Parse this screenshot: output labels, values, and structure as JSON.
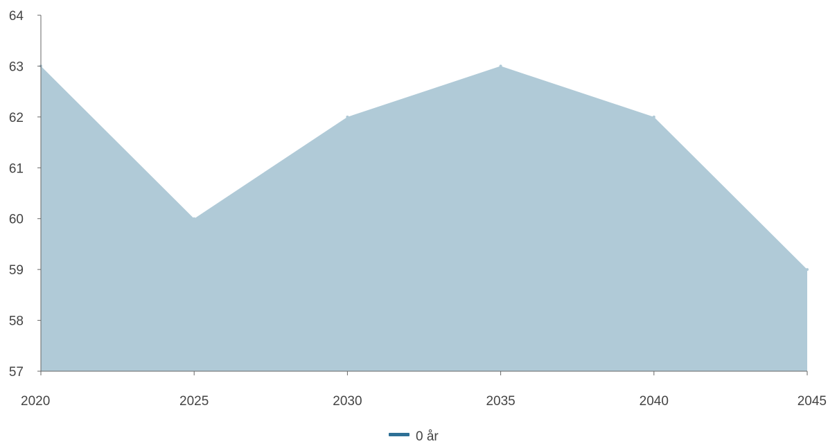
{
  "chart_data": {
    "type": "area",
    "x": [
      2020,
      2025,
      2030,
      2035,
      2040,
      2045
    ],
    "series": [
      {
        "name": "0 år",
        "values": [
          63,
          60,
          62,
          63,
          62,
          59
        ]
      }
    ],
    "ylim": [
      57,
      64
    ],
    "yticks": [
      57,
      58,
      59,
      60,
      61,
      62,
      63,
      64
    ],
    "xticks": [
      2020,
      2025,
      2030,
      2035,
      2040,
      2045
    ],
    "grid": false,
    "legend_position": "bottom-center",
    "colors": {
      "area_fill": "#b0cad7",
      "legend_swatch": "#2e7096",
      "axis": "#666666",
      "text": "#444444"
    }
  }
}
